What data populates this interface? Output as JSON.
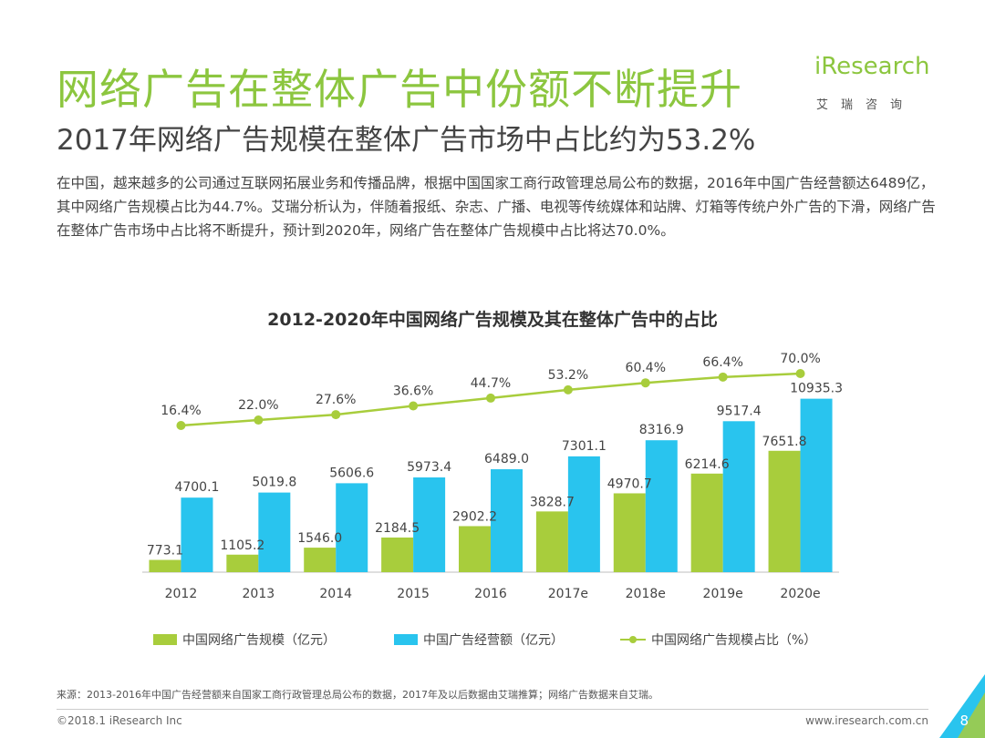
{
  "header": {
    "title": "网络广告在整体广告中份额不断提升",
    "subtitle": "2017年网络广告规模在整体广告市场中占比约为53.2%",
    "body": "在中国，越来越多的公司通过互联网拓展业务和传播品牌，根据中国国家工商行政管理总局公布的数据，2016年中国广告经营额达6489亿，其中网络广告规模占比为44.7%。艾瑞分析认为，伴随着报纸、杂志、广播、电视等传统媒体和站牌、灯箱等传统户外广告的下滑，网络广告在整体广告市场中占比将不断提升，预计到2020年，网络广告在整体广告规模中占比将达70.0%。"
  },
  "logo": {
    "brand": "iResearch",
    "sub": "艾瑞咨询",
    "color": "#8cc63f"
  },
  "chart_data": {
    "type": "bar",
    "title": "2012-2020年中国网络广告规模及其在整体广告中的占比",
    "categories": [
      "2012",
      "2013",
      "2014",
      "2015",
      "2016",
      "2017e",
      "2018e",
      "2019e",
      "2020e"
    ],
    "series": [
      {
        "name": "中国网络广告规模（亿元）",
        "kind": "bar",
        "color": "#a8cd3c",
        "values": [
          773.1,
          1105.2,
          1546.0,
          2184.5,
          2902.2,
          3828.7,
          4970.7,
          6214.6,
          7651.8
        ],
        "labels": [
          "773.1",
          "1105.2",
          "1546.0",
          "2184.5",
          "2902.2",
          "3828.7",
          "4970.7",
          "6214.6",
          "7651.8"
        ]
      },
      {
        "name": "中国广告经营额（亿元）",
        "kind": "bar",
        "color": "#29c4ee",
        "values": [
          4700.1,
          5019.8,
          5606.6,
          5973.4,
          6489.0,
          7301.1,
          8316.9,
          9517.4,
          10935.3
        ],
        "labels": [
          "4700.1",
          "5019.8",
          "5606.6",
          "5973.4",
          "6489.0",
          "7301.1",
          "8316.9",
          "9517.4",
          "10935.3"
        ]
      },
      {
        "name": "中国网络广告规模占比（%）",
        "kind": "line",
        "color": "#a8cd3c",
        "values": [
          16.4,
          22.0,
          27.6,
          36.6,
          44.7,
          53.2,
          60.4,
          66.4,
          70.0
        ],
        "labels": [
          "16.4%",
          "22.0%",
          "27.6%",
          "36.6%",
          "44.7%",
          "53.2%",
          "60.4%",
          "66.4%",
          "70.0%"
        ]
      }
    ],
    "bar_ylim": [
      0,
      13000
    ],
    "line_ylim": [
      0,
      100
    ],
    "grid": false,
    "legend_position": "bottom"
  },
  "footer": {
    "source": "来源：2013-2016年中国广告经营额来自国家工商行政管理总局公布的数据，2017年及以后数据由艾瑞推算；网络广告数据来自艾瑞。",
    "copyright": "©2018.1 iResearch Inc",
    "website": "www.iresearch.com.cn",
    "page": "8"
  }
}
